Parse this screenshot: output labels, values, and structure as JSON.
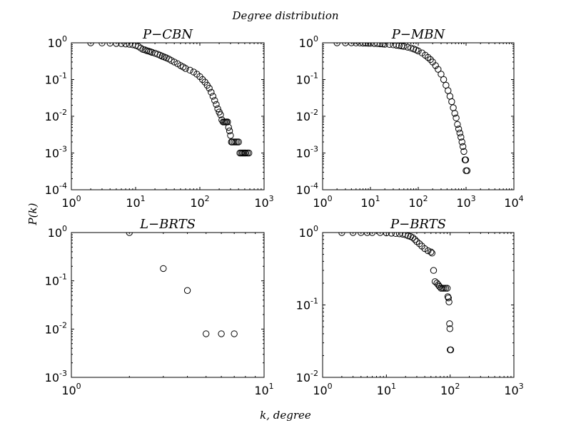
{
  "figure": {
    "suptitle": "Degree distribution",
    "ylabel": "P(k)",
    "xlabel": "k, degree"
  },
  "chart_data": [
    {
      "type": "scatter",
      "title": "P−CBN",
      "xscale": "log",
      "yscale": "log",
      "xlim": [
        1,
        1000
      ],
      "ylim": [
        0.0001,
        1
      ],
      "x_tick_labels": [
        {
          "base": "10",
          "exp": "0"
        },
        {
          "base": "10",
          "exp": "1"
        },
        {
          "base": "10",
          "exp": "2"
        },
        {
          "base": "10",
          "exp": "3"
        }
      ],
      "y_tick_labels": [
        {
          "base": "10",
          "exp": "-4"
        },
        {
          "base": "10",
          "exp": "-3"
        },
        {
          "base": "10",
          "exp": "-2"
        },
        {
          "base": "10",
          "exp": "-1"
        },
        {
          "base": "10",
          "exp": "0"
        }
      ],
      "marker": "open-circle",
      "points": [
        [
          2,
          1.0
        ],
        [
          3,
          0.99
        ],
        [
          4,
          0.98
        ],
        [
          5,
          0.96
        ],
        [
          6,
          0.95
        ],
        [
          7,
          0.93
        ],
        [
          8,
          0.91
        ],
        [
          9,
          0.88
        ],
        [
          10,
          0.85
        ],
        [
          11,
          0.8
        ],
        [
          12,
          0.72
        ],
        [
          13,
          0.66
        ],
        [
          14,
          0.64
        ],
        [
          15,
          0.61
        ],
        [
          16,
          0.59
        ],
        [
          17,
          0.57
        ],
        [
          18,
          0.55
        ],
        [
          20,
          0.52
        ],
        [
          22,
          0.49
        ],
        [
          24,
          0.46
        ],
        [
          26,
          0.43
        ],
        [
          28,
          0.41
        ],
        [
          30,
          0.39
        ],
        [
          33,
          0.36
        ],
        [
          36,
          0.33
        ],
        [
          40,
          0.3
        ],
        [
          45,
          0.27
        ],
        [
          50,
          0.24
        ],
        [
          55,
          0.22
        ],
        [
          60,
          0.2
        ],
        [
          70,
          0.18
        ],
        [
          80,
          0.16
        ],
        [
          90,
          0.14
        ],
        [
          100,
          0.12
        ],
        [
          110,
          0.1
        ],
        [
          120,
          0.085
        ],
        [
          130,
          0.07
        ],
        [
          140,
          0.058
        ],
        [
          150,
          0.045
        ],
        [
          160,
          0.035
        ],
        [
          170,
          0.027
        ],
        [
          180,
          0.021
        ],
        [
          190,
          0.016
        ],
        [
          200,
          0.013
        ],
        [
          210,
          0.011
        ],
        [
          220,
          0.008
        ],
        [
          230,
          0.007
        ],
        [
          240,
          0.007
        ],
        [
          250,
          0.007
        ],
        [
          260,
          0.007
        ],
        [
          270,
          0.007
        ],
        [
          280,
          0.005
        ],
        [
          290,
          0.004
        ],
        [
          300,
          0.003
        ],
        [
          310,
          0.002
        ],
        [
          320,
          0.002
        ],
        [
          340,
          0.002
        ],
        [
          360,
          0.002
        ],
        [
          380,
          0.002
        ],
        [
          400,
          0.002
        ],
        [
          420,
          0.001
        ],
        [
          440,
          0.001
        ],
        [
          460,
          0.001
        ],
        [
          480,
          0.001
        ],
        [
          500,
          0.001
        ],
        [
          520,
          0.001
        ],
        [
          550,
          0.001
        ],
        [
          580,
          0.001
        ]
      ]
    },
    {
      "type": "scatter",
      "title": "P−MBN",
      "xscale": "log",
      "yscale": "log",
      "xlim": [
        1,
        10000
      ],
      "ylim": [
        0.0001,
        1
      ],
      "x_tick_labels": [
        {
          "base": "10",
          "exp": "0"
        },
        {
          "base": "10",
          "exp": "1"
        },
        {
          "base": "10",
          "exp": "2"
        },
        {
          "base": "10",
          "exp": "3"
        },
        {
          "base": "10",
          "exp": "4"
        }
      ],
      "y_tick_labels": [
        {
          "base": "10",
          "exp": "-4"
        },
        {
          "base": "10",
          "exp": "-3"
        },
        {
          "base": "10",
          "exp": "-2"
        },
        {
          "base": "10",
          "exp": "-1"
        },
        {
          "base": "10",
          "exp": "0"
        }
      ],
      "marker": "open-circle",
      "points": [
        [
          2,
          1.0
        ],
        [
          3,
          1.0
        ],
        [
          4,
          1.0
        ],
        [
          5,
          0.99
        ],
        [
          6,
          0.99
        ],
        [
          7,
          0.98
        ],
        [
          8,
          0.98
        ],
        [
          9,
          0.97
        ],
        [
          10,
          0.97
        ],
        [
          12,
          0.96
        ],
        [
          14,
          0.95
        ],
        [
          16,
          0.94
        ],
        [
          18,
          0.93
        ],
        [
          20,
          0.92
        ],
        [
          25,
          0.9
        ],
        [
          30,
          0.88
        ],
        [
          35,
          0.86
        ],
        [
          40,
          0.84
        ],
        [
          45,
          0.82
        ],
        [
          50,
          0.8
        ],
        [
          60,
          0.76
        ],
        [
          70,
          0.72
        ],
        [
          80,
          0.68
        ],
        [
          90,
          0.64
        ],
        [
          100,
          0.6
        ],
        [
          120,
          0.53
        ],
        [
          140,
          0.46
        ],
        [
          160,
          0.4
        ],
        [
          180,
          0.35
        ],
        [
          200,
          0.3
        ],
        [
          230,
          0.24
        ],
        [
          260,
          0.19
        ],
        [
          300,
          0.14
        ],
        [
          340,
          0.1
        ],
        [
          380,
          0.07
        ],
        [
          420,
          0.05
        ],
        [
          460,
          0.035
        ],
        [
          500,
          0.025
        ],
        [
          540,
          0.017
        ],
        [
          580,
          0.012
        ],
        [
          620,
          0.009
        ],
        [
          660,
          0.006
        ],
        [
          700,
          0.0045
        ],
        [
          740,
          0.0035
        ],
        [
          780,
          0.0027
        ],
        [
          820,
          0.002
        ],
        [
          860,
          0.0015
        ],
        [
          900,
          0.0011
        ],
        [
          950,
          0.00065
        ],
        [
          980,
          0.00065
        ],
        [
          1000,
          0.00033
        ],
        [
          1050,
          0.00033
        ]
      ]
    },
    {
      "type": "scatter",
      "title": "L−BRTS",
      "xscale": "log",
      "yscale": "log",
      "xlim": [
        1,
        10
      ],
      "ylim": [
        0.001,
        1
      ],
      "x_tick_labels": [
        {
          "base": "10",
          "exp": "0"
        },
        {
          "base": "10",
          "exp": "1"
        }
      ],
      "y_tick_labels": [
        {
          "base": "10",
          "exp": "-3"
        },
        {
          "base": "10",
          "exp": "-2"
        },
        {
          "base": "10",
          "exp": "-1"
        },
        {
          "base": "10",
          "exp": "0"
        }
      ],
      "marker": "open-circle",
      "points": [
        [
          2,
          1.0
        ],
        [
          3,
          0.18
        ],
        [
          4,
          0.063
        ],
        [
          5,
          0.008
        ],
        [
          6,
          0.008
        ],
        [
          7,
          0.008
        ]
      ]
    },
    {
      "type": "scatter",
      "title": "P−BRTS",
      "xscale": "log",
      "yscale": "log",
      "xlim": [
        1,
        1000
      ],
      "ylim": [
        0.01,
        1
      ],
      "x_tick_labels": [
        {
          "base": "10",
          "exp": "0"
        },
        {
          "base": "10",
          "exp": "1"
        },
        {
          "base": "10",
          "exp": "2"
        },
        {
          "base": "10",
          "exp": "3"
        }
      ],
      "y_tick_labels": [
        {
          "base": "10",
          "exp": "-2"
        },
        {
          "base": "10",
          "exp": "-1"
        },
        {
          "base": "10",
          "exp": "0"
        }
      ],
      "marker": "open-circle",
      "points": [
        [
          2,
          1.0
        ],
        [
          3,
          1.0
        ],
        [
          4,
          1.0
        ],
        [
          5,
          1.0
        ],
        [
          6,
          1.0
        ],
        [
          8,
          1.0
        ],
        [
          10,
          0.99
        ],
        [
          12,
          0.98
        ],
        [
          14,
          0.97
        ],
        [
          16,
          0.96
        ],
        [
          18,
          0.95
        ],
        [
          20,
          0.93
        ],
        [
          22,
          0.9
        ],
        [
          24,
          0.88
        ],
        [
          26,
          0.85
        ],
        [
          28,
          0.8
        ],
        [
          30,
          0.75
        ],
        [
          33,
          0.7
        ],
        [
          36,
          0.65
        ],
        [
          40,
          0.6
        ],
        [
          45,
          0.56
        ],
        [
          50,
          0.54
        ],
        [
          52,
          0.52
        ],
        [
          55,
          0.3
        ],
        [
          58,
          0.21
        ],
        [
          62,
          0.2
        ],
        [
          65,
          0.19
        ],
        [
          68,
          0.18
        ],
        [
          72,
          0.17
        ],
        [
          76,
          0.17
        ],
        [
          80,
          0.17
        ],
        [
          85,
          0.17
        ],
        [
          90,
          0.17
        ],
        [
          92,
          0.13
        ],
        [
          94,
          0.125
        ],
        [
          96,
          0.11
        ],
        [
          98,
          0.055
        ],
        [
          99,
          0.047
        ],
        [
          100,
          0.024
        ],
        [
          102,
          0.024
        ]
      ]
    }
  ]
}
